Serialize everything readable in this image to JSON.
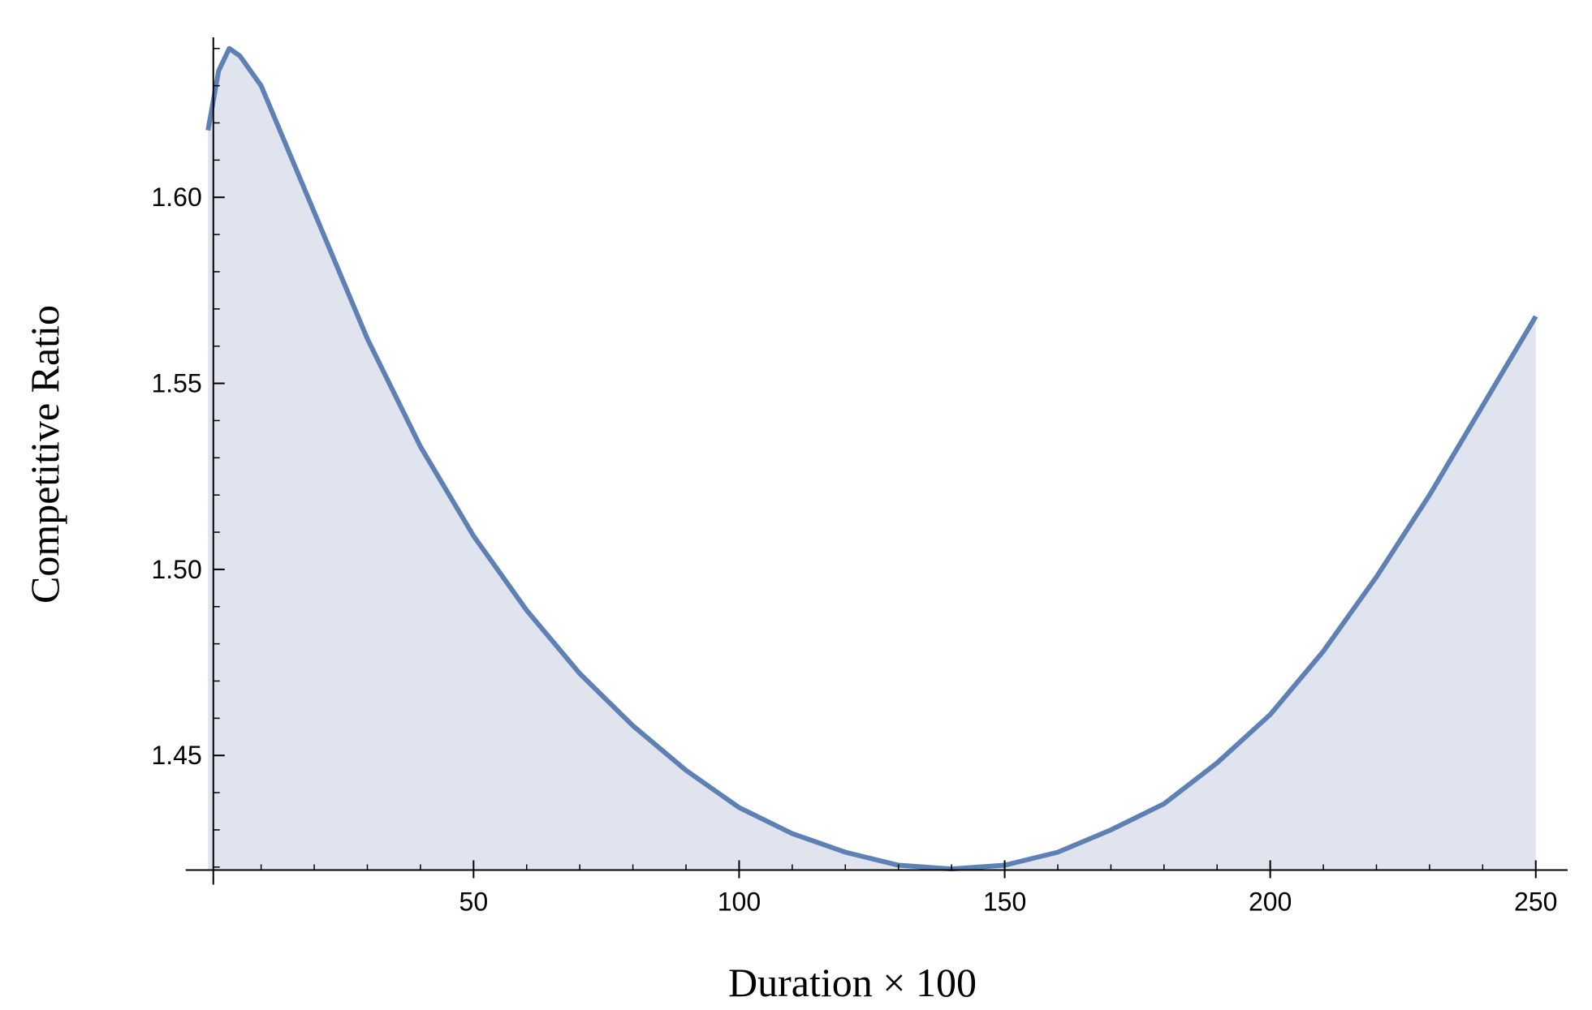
{
  "chart_data": {
    "type": "area",
    "x_label": "Duration × 100",
    "y_label": "Competitive Ratio",
    "x": [
      0,
      2,
      4,
      6,
      10,
      20,
      30,
      40,
      50,
      60,
      70,
      80,
      90,
      100,
      110,
      120,
      130,
      140,
      150,
      160,
      170,
      180,
      190,
      200,
      210,
      220,
      230,
      240,
      250
    ],
    "values": [
      1.618,
      1.634,
      1.64,
      1.638,
      1.63,
      1.596,
      1.562,
      1.533,
      1.509,
      1.489,
      1.472,
      1.458,
      1.446,
      1.436,
      1.429,
      1.424,
      1.4205,
      1.4195,
      1.4205,
      1.424,
      1.43,
      1.437,
      1.448,
      1.461,
      1.478,
      1.498,
      1.52,
      1.544,
      1.568
    ],
    "color": "#5e81b5",
    "fill_color": "#dfe4ef",
    "xlim": [
      -4.2,
      256
    ],
    "ylim": [
      1.4192,
      1.643
    ],
    "axes_origin": [
      1,
      1.4192
    ],
    "xticks": [
      50,
      100,
      150,
      200,
      250
    ],
    "xticks_minor": [
      10,
      20,
      30,
      40,
      60,
      70,
      80,
      90,
      110,
      120,
      130,
      140,
      160,
      170,
      180,
      190,
      210,
      220,
      230,
      240
    ],
    "yticks": [
      {
        "value": 1.45,
        "label": "1.45"
      },
      {
        "value": 1.5,
        "label": "1.50"
      },
      {
        "value": 1.55,
        "label": "1.55"
      },
      {
        "value": 1.6,
        "label": "1.60"
      }
    ],
    "yticks_minor": [
      1.42,
      1.43,
      1.44,
      1.46,
      1.47,
      1.48,
      1.49,
      1.51,
      1.52,
      1.53,
      1.54,
      1.56,
      1.57,
      1.58,
      1.59,
      1.61,
      1.62,
      1.63,
      1.64
    ]
  }
}
